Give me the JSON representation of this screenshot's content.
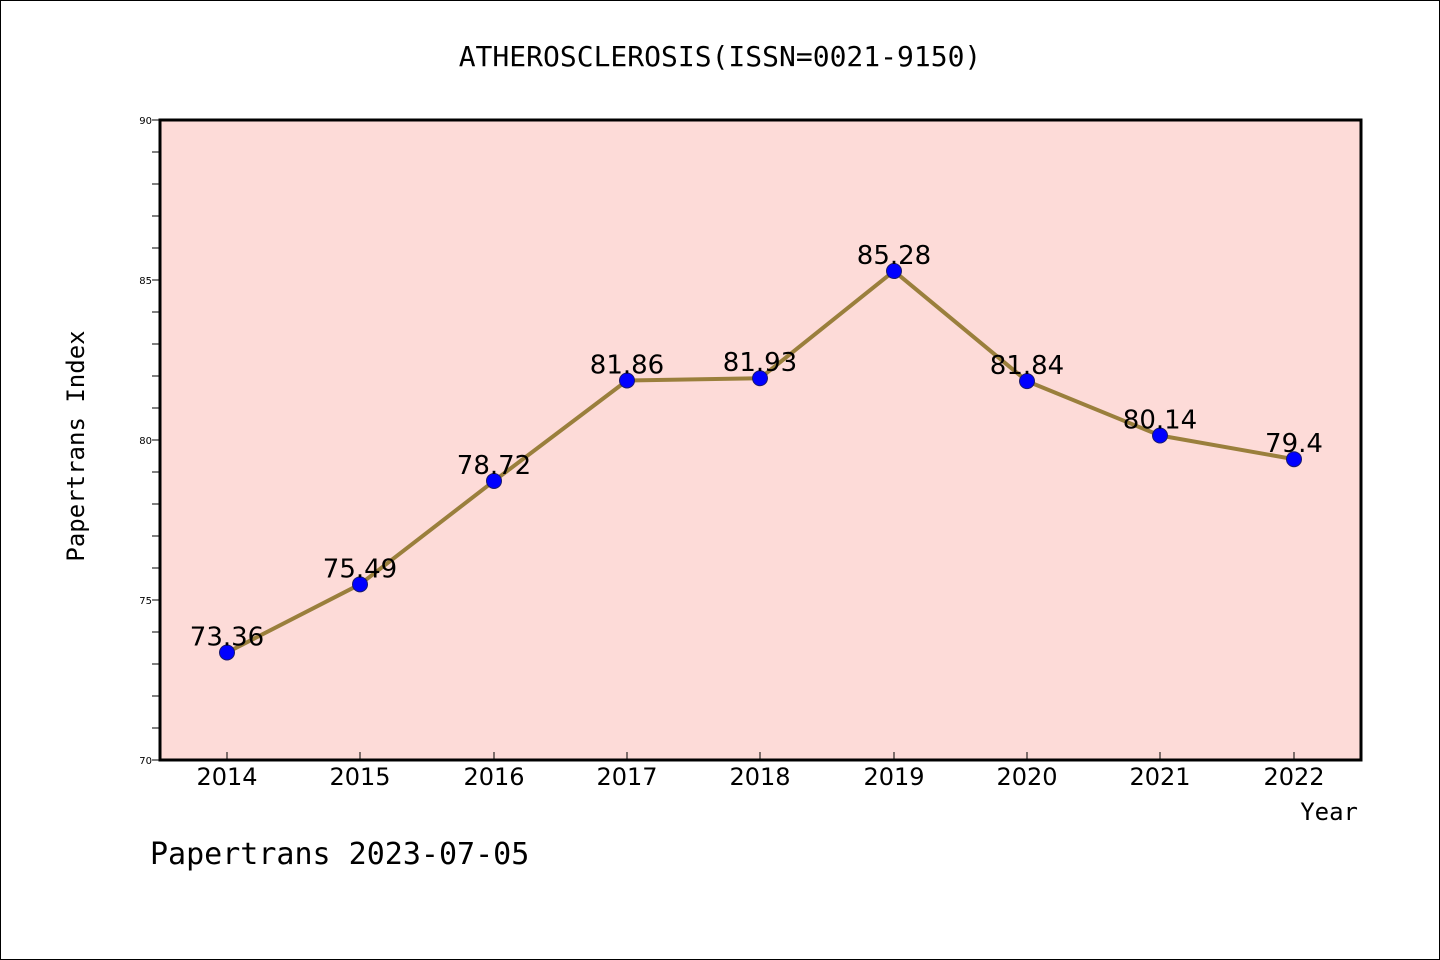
{
  "chart_data": {
    "type": "line",
    "title": "ATHEROSCLEROSIS(ISSN=0021-9150)",
    "xlabel": "Year",
    "ylabel": "Papertrans Index",
    "categories": [
      "2014",
      "2015",
      "2016",
      "2017",
      "2018",
      "2019",
      "2020",
      "2021",
      "2022"
    ],
    "values": [
      73.36,
      75.49,
      78.72,
      81.86,
      81.93,
      85.28,
      81.84,
      80.14,
      79.4
    ],
    "value_labels": [
      "73.36",
      "75.49",
      "78.72",
      "81.86",
      "81.93",
      "85.28",
      "81.84",
      "80.14",
      "79.4"
    ],
    "ylim": [
      70,
      90
    ],
    "yticks": [
      "70",
      "75",
      "80",
      "85",
      "90"
    ],
    "grid": false,
    "colors": {
      "plot_background": "#fddbd8",
      "line": "#9a7f3c",
      "marker": "#0000ff"
    }
  },
  "footer": {
    "text": "Papertrans 2023-07-05"
  }
}
